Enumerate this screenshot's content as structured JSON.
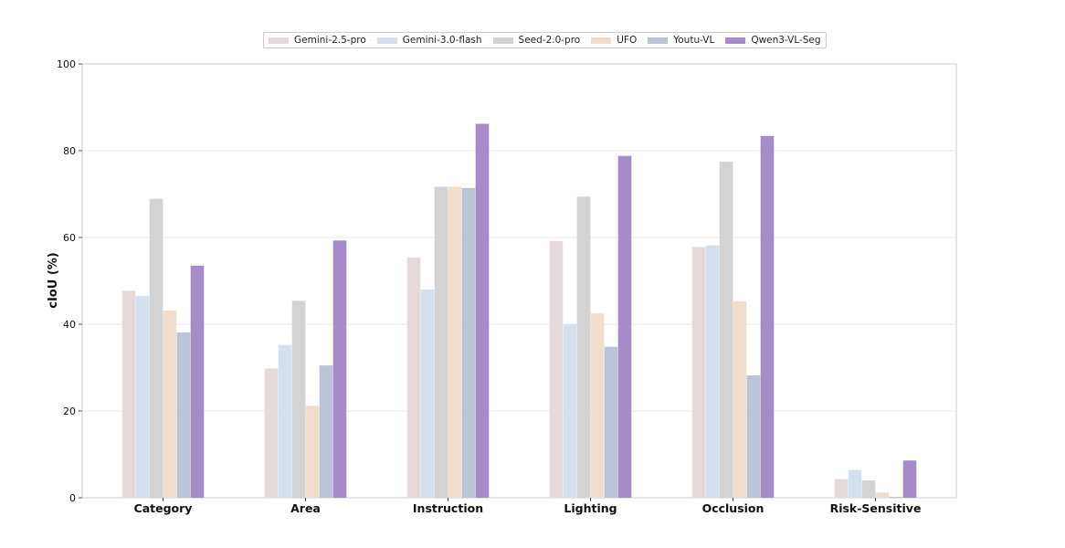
{
  "chart_data": {
    "type": "bar",
    "title": "",
    "xlabel": "",
    "ylabel": "cIoU (%)",
    "ylim": [
      0,
      100
    ],
    "yticks": [
      0,
      20,
      40,
      60,
      80,
      100
    ],
    "grid": true,
    "legend_position": "top",
    "categories": [
      "Category",
      "Area",
      "Instruction",
      "Lighting",
      "Occlusion",
      "Risk-Sensitive"
    ],
    "series": [
      {
        "name": "Gemini-2.5-pro",
        "color": "#e6d9da",
        "values": [
          47.7,
          29.8,
          55.4,
          59.2,
          57.8,
          4.3
        ]
      },
      {
        "name": "Gemini-3.0-flash",
        "color": "#d5e0ef",
        "values": [
          46.5,
          35.2,
          48.0,
          40.0,
          58.2,
          6.4
        ]
      },
      {
        "name": "Seed-2.0-pro",
        "color": "#d3d3d3",
        "values": [
          68.9,
          45.4,
          71.7,
          69.4,
          77.5,
          4.0
        ]
      },
      {
        "name": "UFO",
        "color": "#f1ddcb",
        "values": [
          43.2,
          21.2,
          71.7,
          42.5,
          45.3,
          1.2
        ]
      },
      {
        "name": "Youtu-VL",
        "color": "#bcc3d6",
        "values": [
          38.1,
          30.5,
          71.4,
          34.8,
          28.2,
          0.2
        ]
      },
      {
        "name": "Qwen3-VL-Seg",
        "color": "#a58bc8",
        "values": [
          53.5,
          59.3,
          86.2,
          78.8,
          83.4,
          8.6
        ]
      }
    ]
  }
}
